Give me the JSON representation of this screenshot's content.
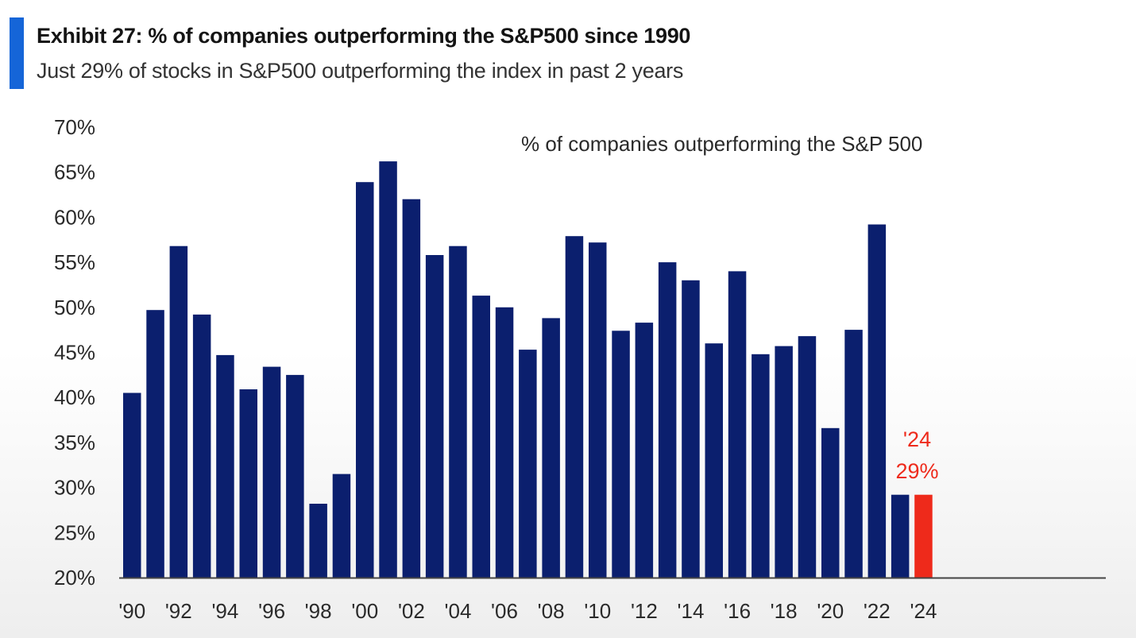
{
  "header": {
    "title": "Exhibit 27: % of companies outperforming the S&P500 since 1990",
    "subtitle": "Just 29% of stocks in S&P500 outperforming the index in past 2 years"
  },
  "colors": {
    "accent": "#1565d8",
    "bar": "#0b1f6e",
    "highlight": "#ee2a1b",
    "axis": "#444444"
  },
  "chart_data": {
    "type": "bar",
    "title": "Exhibit 27: % of companies outperforming the S&P500 since 1990",
    "annotation": "% of companies outperforming the S&P 500",
    "xlabel": "",
    "ylabel": "",
    "ylim": [
      20,
      70
    ],
    "yticks": [
      70,
      65,
      60,
      55,
      50,
      45,
      40,
      35,
      30,
      25,
      20
    ],
    "ytick_labels": [
      "70%",
      "65%",
      "60%",
      "55%",
      "50%",
      "45%",
      "40%",
      "35%",
      "30%",
      "25%",
      "20%"
    ],
    "grid": false,
    "categories": [
      "1990",
      "1991",
      "1992",
      "1993",
      "1994",
      "1995",
      "1996",
      "1997",
      "1998",
      "1999",
      "2000",
      "2001",
      "2002",
      "2003",
      "2004",
      "2005",
      "2006",
      "2007",
      "2008",
      "2009",
      "2010",
      "2011",
      "2012",
      "2013",
      "2014",
      "2015",
      "2016",
      "2017",
      "2018",
      "2019",
      "2020",
      "2021",
      "2022",
      "2023",
      "2024"
    ],
    "xtick_labels": [
      "'90",
      "",
      "'92",
      "",
      "'94",
      "",
      "'96",
      "",
      "'98",
      "",
      "'00",
      "",
      "'02",
      "",
      "'04",
      "",
      "'06",
      "",
      "'08",
      "",
      "'10",
      "",
      "'12",
      "",
      "'14",
      "",
      "'16",
      "",
      "'18",
      "",
      "'20",
      "",
      "'22",
      "",
      "'24"
    ],
    "values": [
      40.5,
      49.7,
      56.8,
      49.2,
      44.7,
      40.9,
      43.4,
      42.5,
      28.2,
      31.5,
      63.9,
      66.2,
      62.0,
      55.8,
      56.8,
      51.3,
      50.0,
      45.3,
      48.8,
      57.9,
      57.2,
      47.4,
      48.3,
      55.0,
      53.0,
      46.0,
      54.0,
      44.8,
      45.7,
      46.8,
      36.6,
      47.5,
      59.2,
      29.2,
      29.2
    ],
    "highlight_index": 34,
    "highlight_label_line1": "'24",
    "highlight_label_line2": "29%"
  }
}
